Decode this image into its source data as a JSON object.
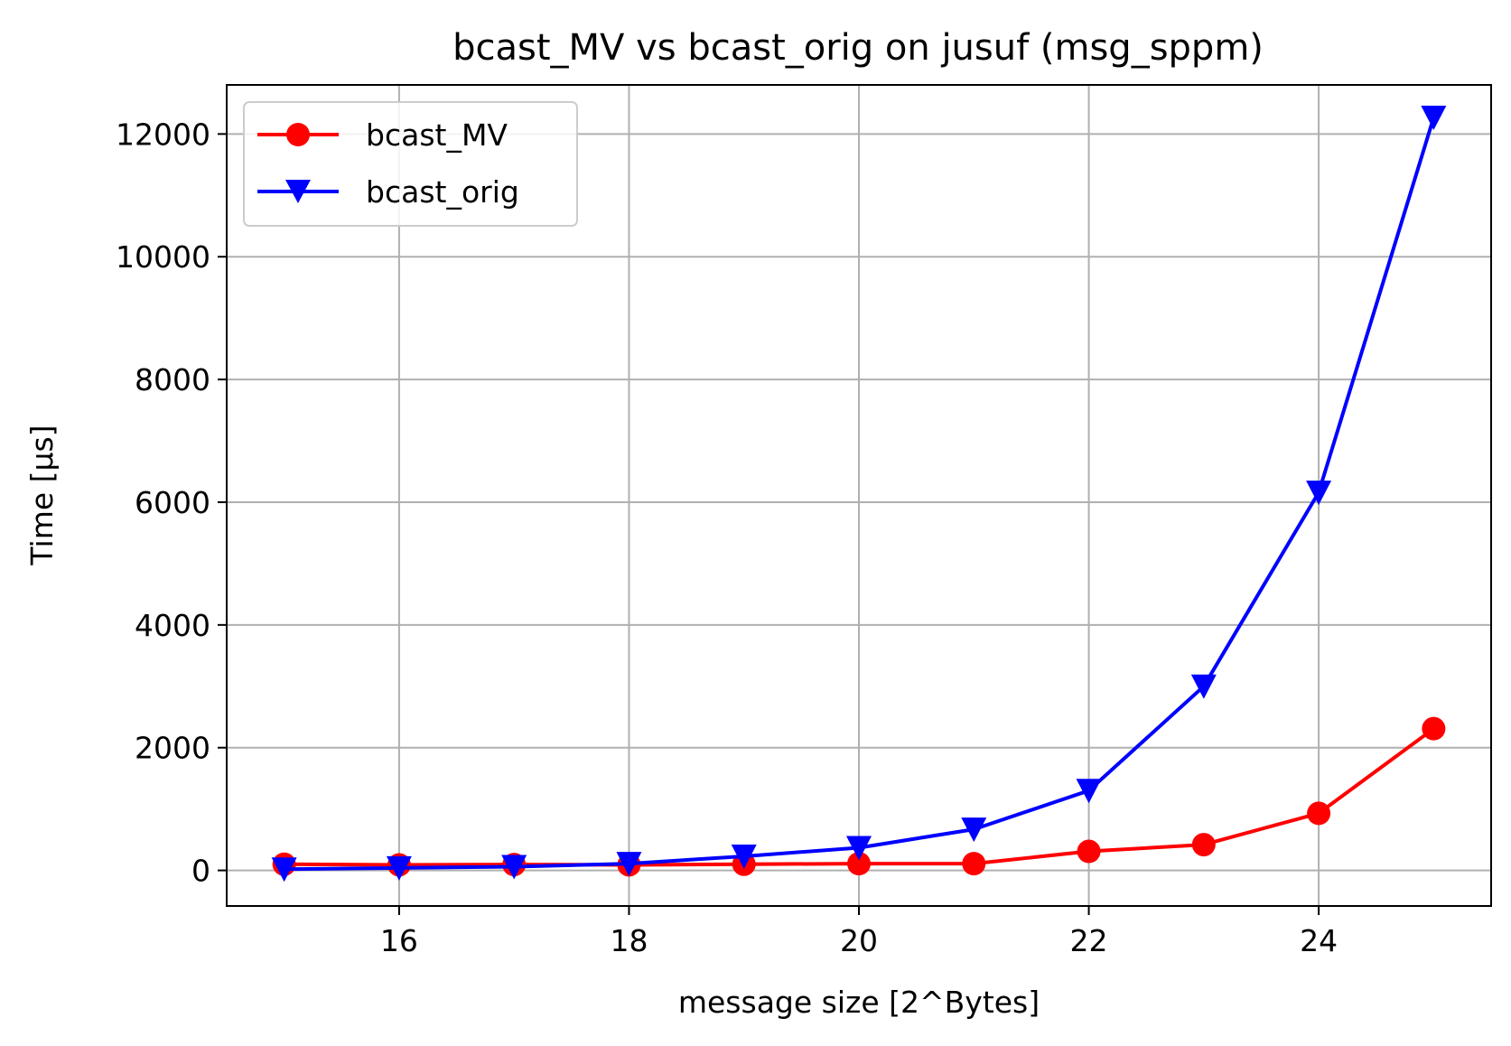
{
  "chart_data": {
    "type": "line",
    "title": "bcast_MV vs bcast_orig on jusuf (msg_sppm)",
    "xlabel": "message size [2^Bytes]",
    "ylabel": "Time [µs]",
    "x": [
      15,
      16,
      17,
      18,
      19,
      20,
      21,
      22,
      23,
      24,
      25
    ],
    "xlim": [
      14.5,
      25.5
    ],
    "ylim": [
      -580,
      12800
    ],
    "xticks": [
      16,
      18,
      20,
      22,
      24
    ],
    "yticks": [
      0,
      2000,
      4000,
      6000,
      8000,
      10000,
      12000
    ],
    "grid": true,
    "legend_position": "top-left",
    "series": [
      {
        "name": "bcast_MV",
        "color": "#ff0000",
        "marker": "circle",
        "values": [
          100,
          90,
          95,
          90,
          100,
          110,
          110,
          310,
          420,
          930,
          2310
        ]
      },
      {
        "name": "bcast_orig",
        "color": "#0000ff",
        "marker": "triangle-down",
        "values": [
          20,
          40,
          60,
          110,
          230,
          370,
          670,
          1300,
          3000,
          6160,
          12270
        ]
      }
    ]
  }
}
